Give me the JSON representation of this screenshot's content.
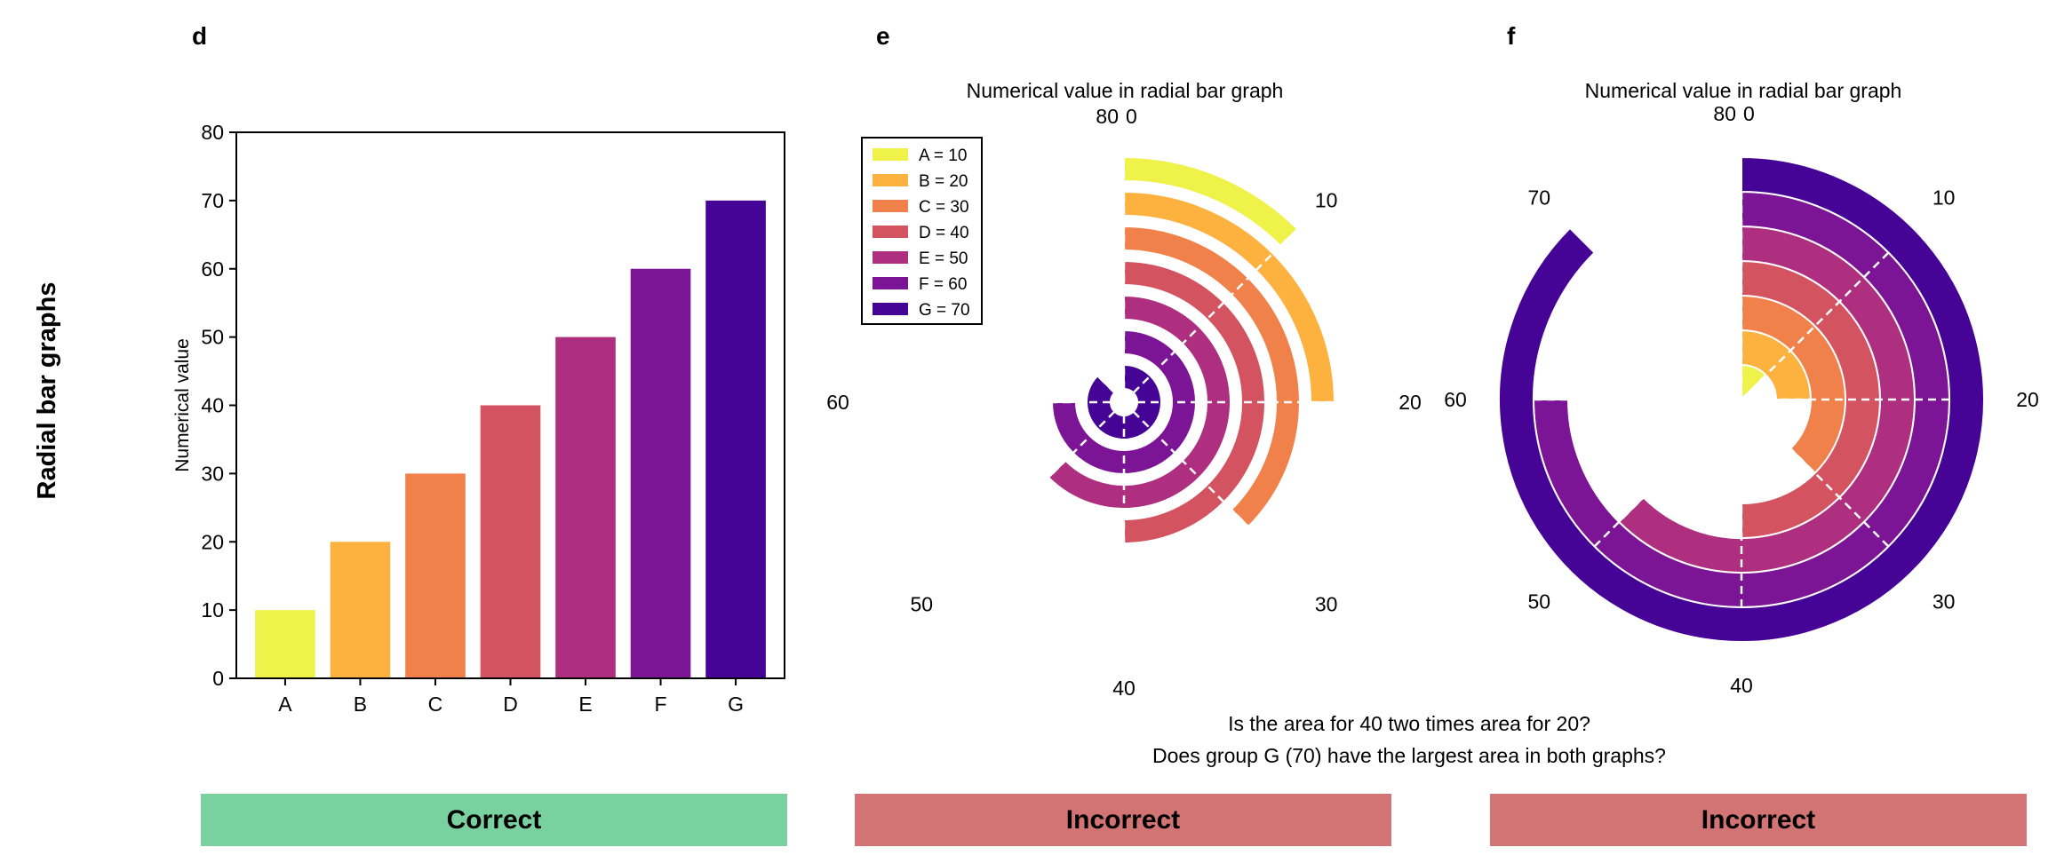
{
  "row_label": "Radial bar graphs",
  "question": {
    "line1": "Is the area for 40 two times area for 20?",
    "line2": "Does group G (70) have the largest area in both graphs?"
  },
  "palette": {
    "A": "#eef249",
    "B": "#fdb240",
    "C": "#f0814a",
    "D": "#d45361",
    "E": "#ae2f7f",
    "F": "#7b1596",
    "G": "#450496",
    "correct": "#79d1a0",
    "incorrect": "#d37474"
  },
  "verdicts": {
    "d": {
      "label": "Correct",
      "status": "correct"
    },
    "e": {
      "label": "Incorrect",
      "status": "incorrect"
    },
    "f": {
      "label": "Incorrect",
      "status": "incorrect"
    }
  },
  "chart_data": [
    {
      "panel": "d",
      "type": "bar",
      "title": "",
      "categories": [
        "A",
        "B",
        "C",
        "D",
        "E",
        "F",
        "G"
      ],
      "values": [
        10,
        20,
        30,
        40,
        50,
        60,
        70
      ],
      "xlabel": "",
      "ylabel": "Numerical value",
      "ylim": [
        0,
        80
      ],
      "yticks": [
        0,
        10,
        20,
        30,
        40,
        50,
        60,
        70,
        80
      ],
      "grid": false
    },
    {
      "panel": "e",
      "type": "radial_bar",
      "title": "Numerical value in radial bar graph",
      "categories": [
        "A",
        "B",
        "C",
        "D",
        "E",
        "F",
        "G"
      ],
      "values": [
        10,
        20,
        30,
        40,
        50,
        60,
        70
      ],
      "angular_range": [
        0,
        80
      ],
      "angular_ticks": [
        0,
        10,
        20,
        30,
        40,
        50,
        60,
        80
      ],
      "bar_radial_order": "A outermost, G innermost",
      "legend": [
        "A = 10",
        "B = 20",
        "C = 30",
        "D = 40",
        "E = 50",
        "F = 60",
        "G = 70"
      ],
      "legend_position": "top-left"
    },
    {
      "panel": "f",
      "type": "radial_bar",
      "title": "Numerical value in radial bar graph",
      "categories": [
        "A",
        "B",
        "C",
        "D",
        "E",
        "F",
        "G"
      ],
      "values": [
        10,
        20,
        30,
        40,
        50,
        60,
        70
      ],
      "angular_range": [
        0,
        80
      ],
      "angular_ticks": [
        0,
        10,
        20,
        30,
        40,
        50,
        60,
        70,
        80
      ],
      "bar_radial_order": "A innermost, G outermost"
    }
  ]
}
